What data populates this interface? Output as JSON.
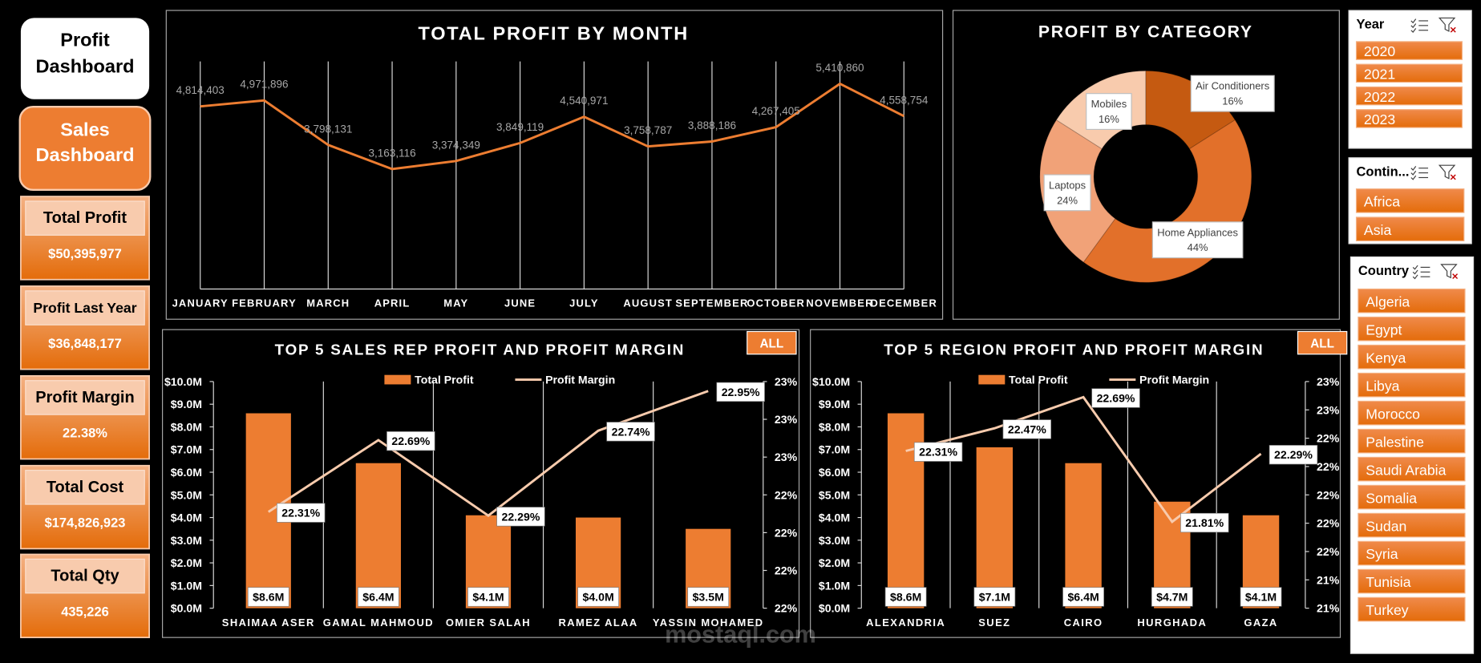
{
  "sidebar": {
    "profit_dashboard": [
      "Profit",
      "Dashboard"
    ],
    "sales_dashboard": [
      "Sales",
      "Dashboard"
    ]
  },
  "kpis": [
    {
      "title": "Total Profit",
      "value": "$50,395,977"
    },
    {
      "title": "Profit Last Year",
      "value": "$36,848,177"
    },
    {
      "title": "Profit Margin",
      "value": "22.38%"
    },
    {
      "title": "Total Cost",
      "value": "$174,826,923"
    },
    {
      "title": "Total Qty",
      "value": "435,226"
    }
  ],
  "chart_data": [
    {
      "type": "line",
      "title": "TOTAL PROFIT BY MONTH",
      "categories": [
        "JANUARY",
        "FEBRUARY",
        "MARCH",
        "APRIL",
        "MAY",
        "JUNE",
        "JULY",
        "AUGUST",
        "SEPTEMBER",
        "OCTOBER",
        "NOVEMBER",
        "DECEMBER"
      ],
      "values": [
        4814403,
        4971896,
        3798131,
        3163116,
        3374349,
        3849119,
        4540971,
        3758787,
        3888186,
        4267405,
        5410860,
        4558754
      ],
      "value_labels": [
        "4,814,403",
        "4,971,896",
        "3,798,131",
        "3,163,116",
        "3,374,349",
        "3,849,119",
        "4,540,971",
        "3,758,787",
        "3,888,186",
        "4,267,405",
        "5,410,860",
        "4,558,754"
      ],
      "color": "#ed7d31",
      "ylim": [
        0,
        6000000
      ]
    },
    {
      "type": "donut",
      "title": "PROFIT BY CATEGORY",
      "categories": [
        "Air Conditioners",
        "Home Appliances",
        "Laptops",
        "Mobiles"
      ],
      "values": [
        16,
        44,
        24,
        16
      ],
      "value_labels": [
        "16%",
        "44%",
        "24%",
        "16%"
      ],
      "colors": [
        "#c55a11",
        "#e2702a",
        "#f1a278",
        "#f8cbad"
      ]
    },
    {
      "type": "combo",
      "title": "TOP 5 SALES REP PROFIT AND PROFIT MARGIN",
      "button": "ALL",
      "categories": [
        "SHAIMAA ASER",
        "GAMAL MAHMOUD",
        "OMIER SALAH",
        "RAMEZ ALAA",
        "YASSIN MOHAMED"
      ],
      "series": [
        {
          "name": "Total Profit",
          "type": "bar",
          "color": "#ed7d31",
          "values": [
            8600000,
            6400000,
            4100000,
            4000000,
            3500000
          ],
          "value_labels": [
            "$8.6M",
            "$6.4M",
            "$4.1M",
            "$4.0M",
            "$3.5M"
          ]
        },
        {
          "name": "Profit Margin",
          "type": "line",
          "axis": "y2",
          "color": "#f8cbad",
          "values": [
            22.31,
            22.69,
            22.29,
            22.74,
            22.95
          ],
          "value_labels": [
            "22.31%",
            "22.69%",
            "22.29%",
            "22.74%",
            "22.95%"
          ]
        }
      ],
      "ylim": [
        0,
        10000000
      ],
      "yticks": [
        {
          "value": 0,
          "label": "$0.0M"
        },
        {
          "value": 1000000,
          "label": "$1.0M"
        },
        {
          "value": 2000000,
          "label": "$2.0M"
        },
        {
          "value": 3000000,
          "label": "$3.0M"
        },
        {
          "value": 4000000,
          "label": "$4.0M"
        },
        {
          "value": 5000000,
          "label": "$5.0M"
        },
        {
          "value": 6000000,
          "label": "$6.0M"
        },
        {
          "value": 7000000,
          "label": "$7.0M"
        },
        {
          "value": 8000000,
          "label": "$8.0M"
        },
        {
          "value": 9000000,
          "label": "$9.0M"
        },
        {
          "value": 10000000,
          "label": "$10.0M"
        }
      ],
      "y2lim": [
        21.8,
        23.0
      ],
      "y2ticks": [
        {
          "value": 21.8,
          "label": "22%"
        },
        {
          "value": 22.0,
          "label": "22%"
        },
        {
          "value": 22.2,
          "label": "22%"
        },
        {
          "value": 22.4,
          "label": "22%"
        },
        {
          "value": 22.6,
          "label": "23%"
        },
        {
          "value": 22.8,
          "label": "23%"
        },
        {
          "value": 23.0,
          "label": "23%"
        }
      ]
    },
    {
      "type": "combo",
      "title": "TOP 5 REGION PROFIT AND PROFIT MARGIN",
      "button": "ALL",
      "categories": [
        "ALEXANDRIA",
        "SUEZ",
        "CAIRO",
        "HURGHADA",
        "GAZA"
      ],
      "series": [
        {
          "name": "Total Profit",
          "type": "bar",
          "color": "#ed7d31",
          "values": [
            8600000,
            7100000,
            6400000,
            4700000,
            4100000
          ],
          "value_labels": [
            "$8.6M",
            "$7.1M",
            "$6.4M",
            "$4.7M",
            "$4.1M"
          ]
        },
        {
          "name": "Profit Margin",
          "type": "line",
          "axis": "y2",
          "color": "#f8cbad",
          "values": [
            22.31,
            22.47,
            22.69,
            21.81,
            22.29
          ],
          "value_labels": [
            "22.31%",
            "22.47%",
            "22.69%",
            "21.81%",
            "22.29%"
          ]
        }
      ],
      "ylim": [
        0,
        10000000
      ],
      "yticks": [
        {
          "value": 0,
          "label": "$0.0M"
        },
        {
          "value": 1000000,
          "label": "$1.0M"
        },
        {
          "value": 2000000,
          "label": "$2.0M"
        },
        {
          "value": 3000000,
          "label": "$3.0M"
        },
        {
          "value": 4000000,
          "label": "$4.0M"
        },
        {
          "value": 5000000,
          "label": "$5.0M"
        },
        {
          "value": 6000000,
          "label": "$6.0M"
        },
        {
          "value": 7000000,
          "label": "$7.0M"
        },
        {
          "value": 8000000,
          "label": "$8.0M"
        },
        {
          "value": 9000000,
          "label": "$9.0M"
        },
        {
          "value": 10000000,
          "label": "$10.0M"
        }
      ],
      "y2lim": [
        21.2,
        22.8
      ],
      "y2ticks": [
        {
          "value": 21.2,
          "label": "21%"
        },
        {
          "value": 21.4,
          "label": "21%"
        },
        {
          "value": 21.6,
          "label": "22%"
        },
        {
          "value": 21.8,
          "label": "22%"
        },
        {
          "value": 22.0,
          "label": "22%"
        },
        {
          "value": 22.2,
          "label": "22%"
        },
        {
          "value": 22.4,
          "label": "22%"
        },
        {
          "value": 22.6,
          "label": "23%"
        },
        {
          "value": 22.8,
          "label": "23%"
        }
      ]
    }
  ],
  "slicers": [
    {
      "title": "Year",
      "items": [
        "2020",
        "2021",
        "2022",
        "2023"
      ]
    },
    {
      "title": "Contin...",
      "items": [
        "Africa",
        "Asia"
      ]
    },
    {
      "title": "Country",
      "items": [
        "Algeria",
        "Egypt",
        "Kenya",
        "Libya",
        "Morocco",
        "Palestine",
        "Saudi Arabia",
        "Somalia",
        "Sudan",
        "Syria",
        "Tunisia",
        "Turkey"
      ]
    }
  ],
  "watermark": "mostaql.com"
}
